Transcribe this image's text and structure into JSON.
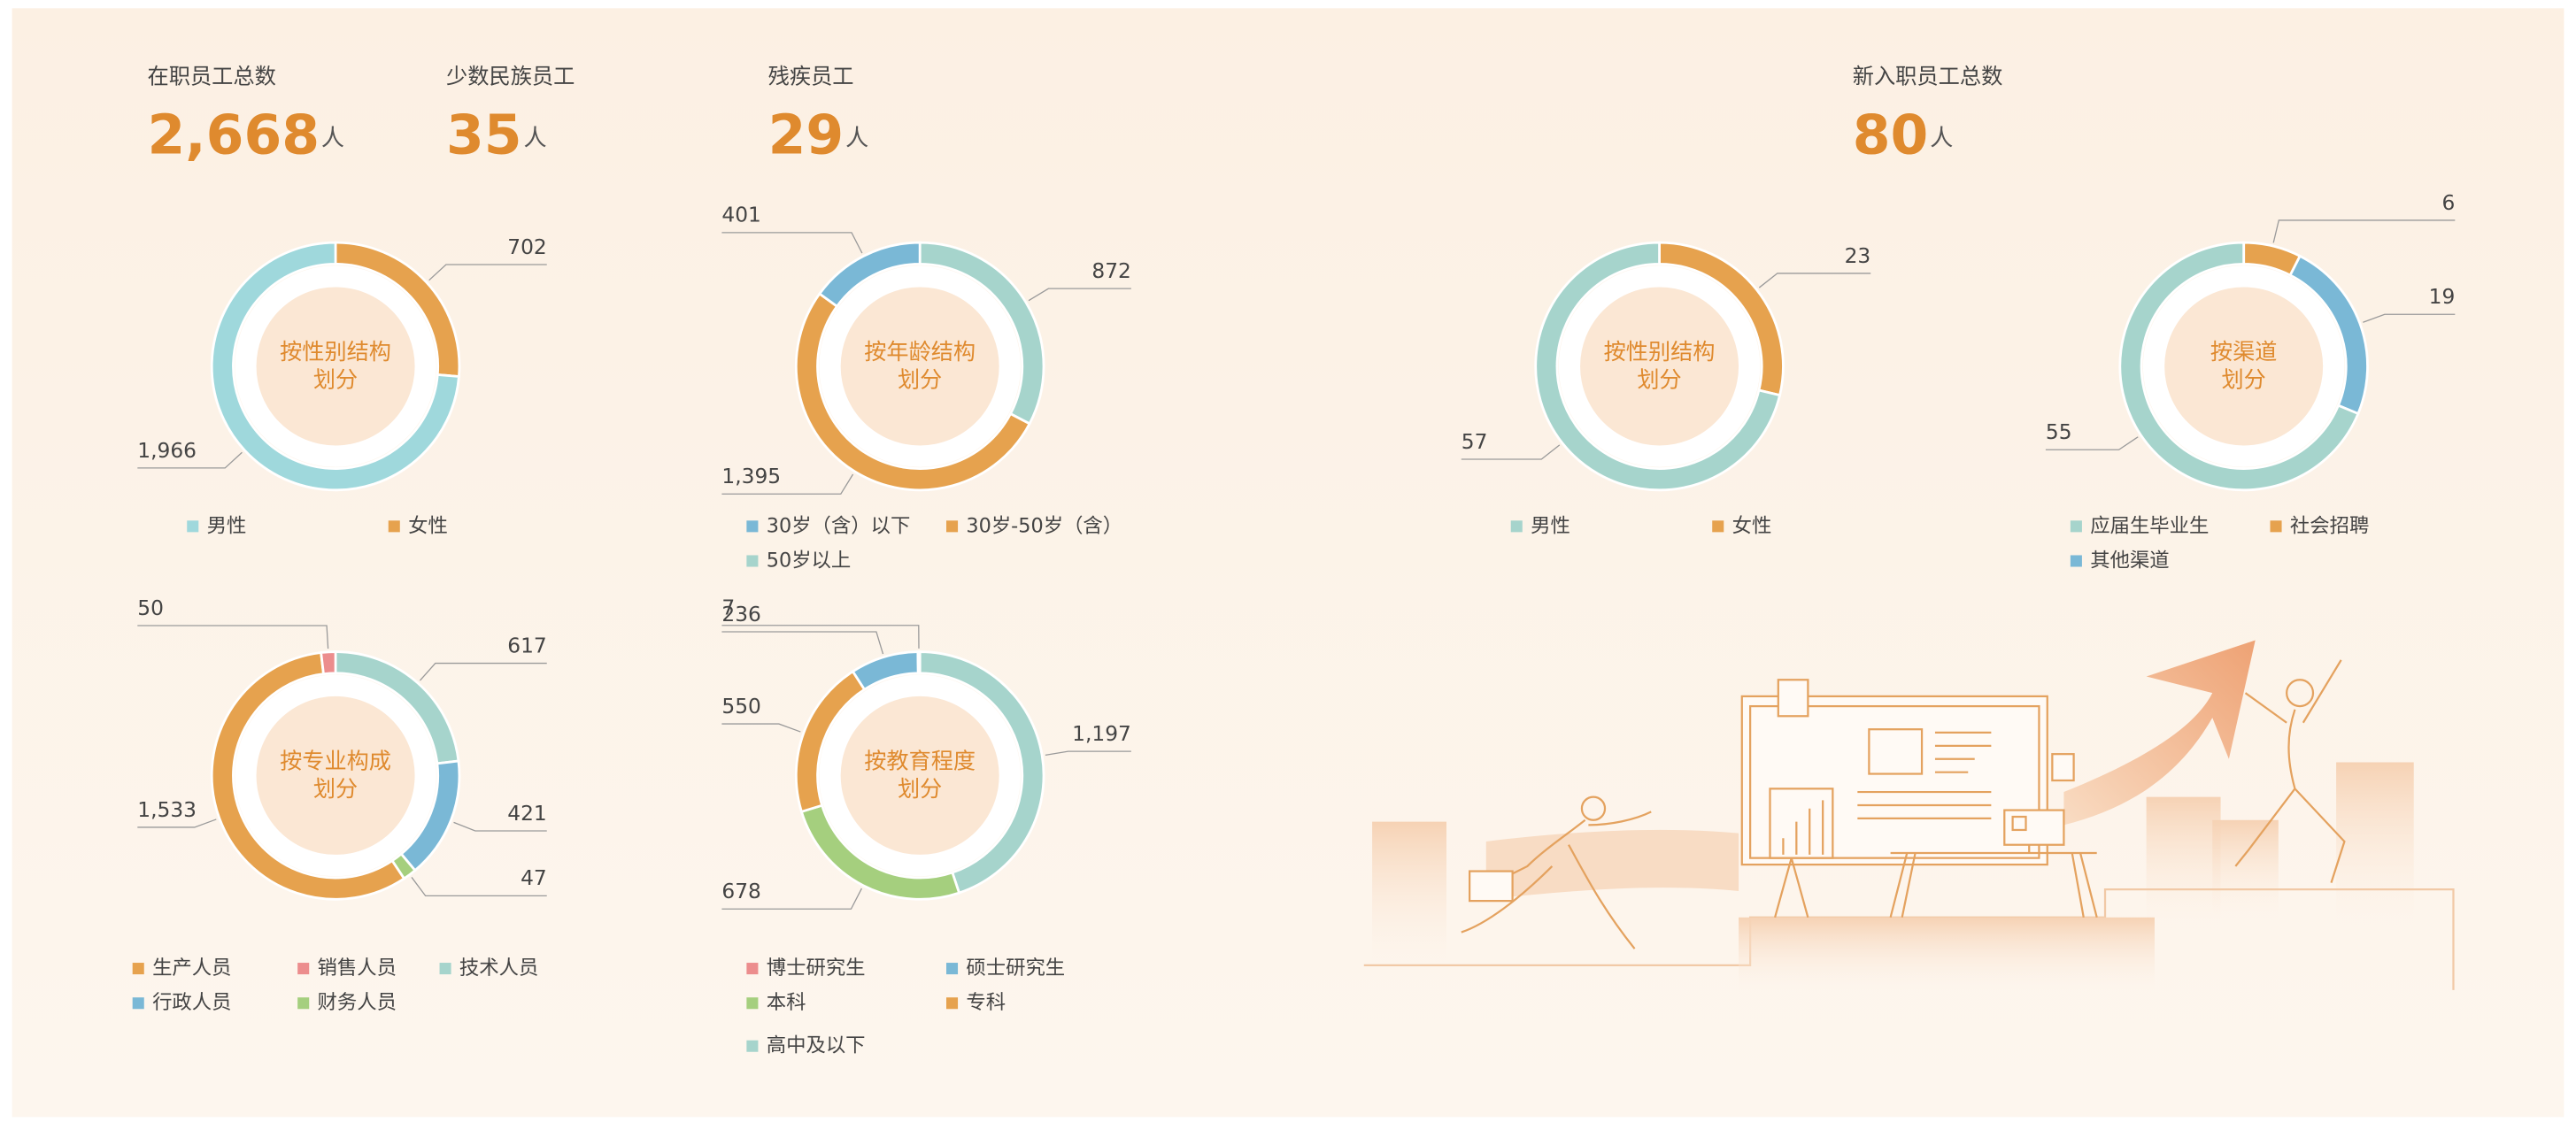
{
  "stats": [
    {
      "title": "在职员工总数",
      "value": "2,668",
      "unit": "人"
    },
    {
      "title": "少数民族员工",
      "value": "35",
      "unit": "人"
    },
    {
      "title": "残疾员工",
      "value": "29",
      "unit": "人"
    },
    {
      "title": "新入职员工总数",
      "value": "80",
      "unit": "人"
    }
  ],
  "chart_data": [
    {
      "type": "donut",
      "center_label": [
        "按性别结构",
        "划分"
      ],
      "categories": [
        "女性",
        "男性"
      ],
      "values": [
        702,
        1966
      ],
      "value_labels": [
        "702",
        "1,966"
      ],
      "colors": [
        "#e6a24e",
        "#9fd8dc"
      ]
    },
    {
      "type": "donut",
      "center_label": [
        "按年龄结构",
        "划分"
      ],
      "categories": [
        "50岁以上",
        "30岁-50岁（含）",
        "30岁（含）以下"
      ],
      "values": [
        872,
        1395,
        401
      ],
      "value_labels": [
        "872",
        "1,395",
        "401"
      ],
      "colors": [
        "#a6d4cc",
        "#e6a24e",
        "#7ab8d6"
      ]
    },
    {
      "type": "donut",
      "center_label": [
        "按性别结构",
        "划分"
      ],
      "categories": [
        "女性",
        "男性"
      ],
      "values": [
        23,
        57
      ],
      "colors": [
        "#e6a24e",
        "#a6d4cc"
      ]
    },
    {
      "type": "donut",
      "center_label": [
        "按渠道",
        "划分"
      ],
      "categories": [
        "社会招聘",
        "其他渠道",
        "应届生毕业生"
      ],
      "values": [
        6,
        19,
        55
      ],
      "colors": [
        "#e6a24e",
        "#7ab8d6",
        "#a6d4cc"
      ]
    },
    {
      "type": "donut",
      "center_label": [
        "按专业构成",
        "划分"
      ],
      "categories": [
        "技术人员",
        "行政人员",
        "财务人员",
        "生产人员",
        "销售人员"
      ],
      "values": [
        617,
        421,
        47,
        1533,
        50
      ],
      "value_labels": [
        "617",
        "421",
        "47",
        "1,533",
        "50"
      ],
      "colors": [
        "#a6d4cc",
        "#7ab8d6",
        "#a5cf7e",
        "#e6a24e",
        "#ec8d8d"
      ]
    },
    {
      "type": "donut",
      "center_label": [
        "按教育程度",
        "划分"
      ],
      "categories": [
        "高中及以下",
        "本科",
        "专科",
        "硕士研究生",
        "博士研究生"
      ],
      "values": [
        1197,
        678,
        550,
        236,
        7
      ],
      "value_labels": [
        "1,197",
        "678",
        "550",
        "236",
        "7"
      ],
      "colors": [
        "#a6d4cc",
        "#a5cf7e",
        "#e6a24e",
        "#7ab8d6",
        "#ec8d8d"
      ]
    }
  ]
}
